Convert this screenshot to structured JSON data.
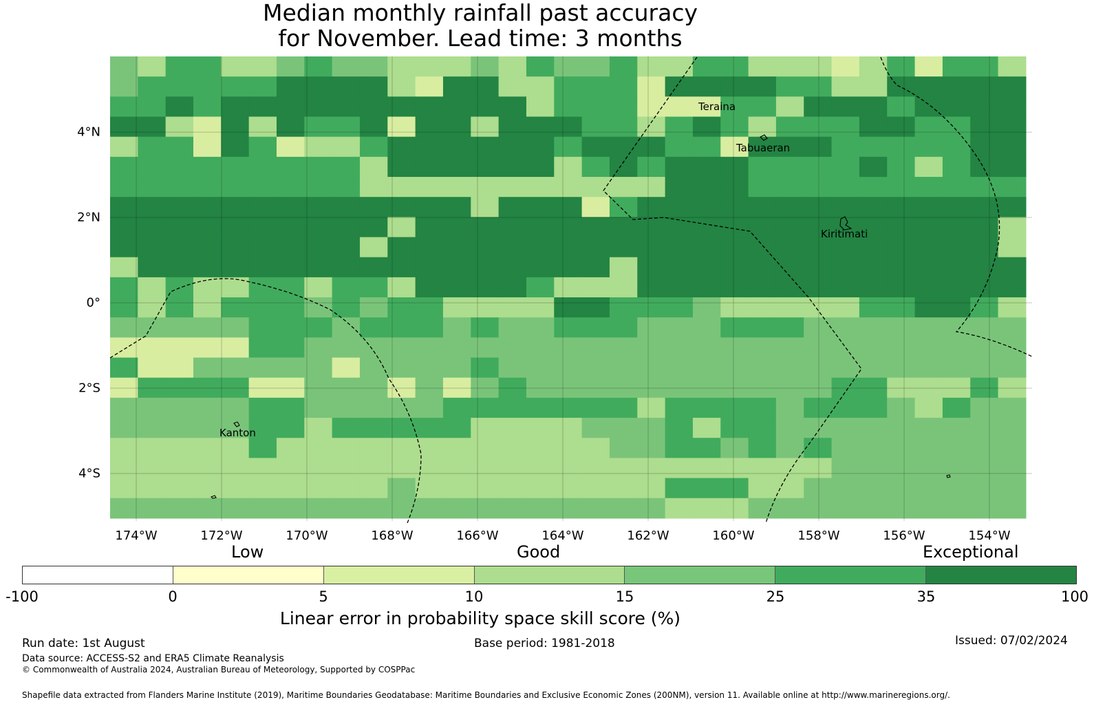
{
  "title_line1": "Median monthly rainfall past accuracy",
  "title_line2": "for November. Lead time: 3 months",
  "map": {
    "lon_ticks": [
      "174°W",
      "172°W",
      "170°W",
      "168°W",
      "166°W",
      "164°W",
      "162°W",
      "160°W",
      "158°W",
      "156°W",
      "154°W"
    ],
    "lat_ticks": [
      "4°N",
      "2°N",
      "0°",
      "2°S",
      "4°S"
    ],
    "places": [
      "Teraina",
      "Tabuaeran",
      "Kiritimati",
      "Kanton"
    ],
    "grid_rows_north_to_south": [
      "a c b b c c a b a a c c c a c b a a b c c b b c c c e c b e b b c",
      "a b b b b b d d d d c e d d c c b b b e d d d d b b c c d d d d d",
      "b b d b d d d d d d d d d d d c b b b e e e b b c d d d b d d d d",
      "d d c e d c d b b d e d d c d d d b b c b d b c b b b d d b b d d",
      "c b b e d b e c c b d d d d d d b d d d b b e d d d b b b b b d d",
      "b b b b b b b b b c d d d d d d c b d b d d d b b b b d b c b d d",
      "b b b b b b b b b c c c c c c c c c c c d d d b b b b b b b b b b",
      "d d d d d d d d d d d d d c d d d e b d d d d d d d d d d d d d d",
      "d d d d d d d d d d c d d d d d d d d d d d d d d d d d d d d d c",
      "d d d d d d d d d c d d d d d d d d d d d d d d d d d d d d d d c",
      "c d d d d d d d d d d d d d d d d d c d d d d d d d d d d d d d d",
      "b c b c c b b c b b c d d d d b c c c d d d d d d d d d d d d d d",
      "b c b c b b b a b a b b c c c c d d b b b a c c c c c b b d d b c",
      "a a a a a b b b a b b b a b a a b b b a a a b b b a a a a a a a a",
      "e e e e e b b a a a a a a a a a a a a a a a a a a a a a a a a a a",
      "b e e a a a a a e a a a a b a a a a a a a a a a a a a a a a a a a",
      "e b b b b e e a a a e a e a b a a a a a a a a a a a b b c c c b c",
      "a a a a a b b a a a a a b b b b b b b c b b b b a b b b a c b a a",
      "a a a a a b b c b b b b b c c c c a a a b c b b a a a a a a a a a",
      "c c c c c b c c c c c c c c c c c c a a b b a b a b a a a a a a a",
      "c c c c c c c c c c c c c c c c c c c c c c c c c c a a a a a a a",
      "c c c c c c c c c c a c c c c c c c c c b b b c c a a a a a a a a",
      "a a a a a a a a a a a a a a a a a a a a c c c a a a a a a a a a a"
    ]
  },
  "colors": {
    "e": "#d8eda0",
    "a": "#7ac47a",
    "b": "#41ab5d",
    "c": "#addd8e",
    "d": "#238443",
    "f": "#ffffcc",
    "g": "#f7fcb9"
  },
  "colorbar": {
    "categories": [
      "Low",
      "Good",
      "Exceptional"
    ],
    "ticks": [
      "-100",
      "0",
      "5",
      "10",
      "15",
      "25",
      "35",
      "100"
    ],
    "segment_colors": [
      "#ffffff",
      "#ffffcc",
      "#d9f0a3",
      "#addd8e",
      "#78c679",
      "#41ab5d",
      "#238443"
    ],
    "label": "Linear error in probability space skill score (%)"
  },
  "footer": {
    "run_date": "Run date: 1st August",
    "base_period": "Base period: 1981-2018",
    "issued": "Issued: 07/02/2024",
    "data_source": "Data source: ACCESS-S2 and ERA5 Climate Reanalysis",
    "copyright": "© Commonwealth of Australia 2024, Australian Bureau of Meteorology, Supported by COSPPac",
    "shapefile": "Shapefile data extracted from Flanders Marine Institute (2019), Maritime Boundaries Geodatabase: Maritime Boundaries and Exclusive Economic Zones (200NM), version 11. Available online at http://www.marineregions.org/."
  }
}
